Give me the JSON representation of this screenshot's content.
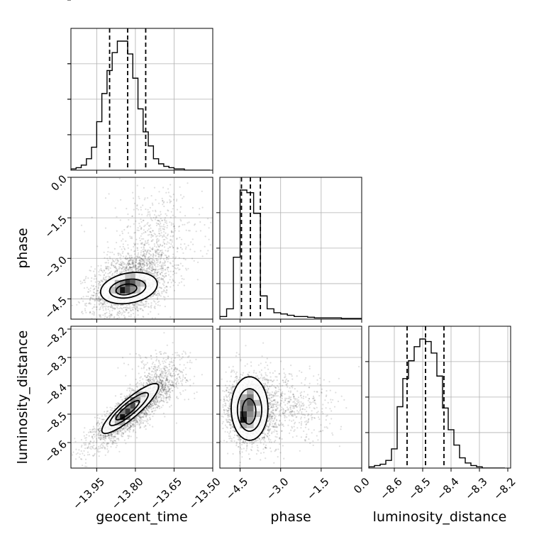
{
  "chart_data": {
    "type": "corner",
    "parameters": [
      "geocent_time",
      "phase",
      "luminosity_distance"
    ],
    "grid": true,
    "ranges": {
      "geocent_time": [
        -14.05,
        -13.5
      ],
      "phase": [
        -5.25,
        0.0
      ],
      "luminosity_distance": [
        -8.69,
        -8.19
      ]
    },
    "tick_labels": {
      "geocent_time": [
        "−13.95",
        "−13.80",
        "−13.65",
        "−13.50"
      ],
      "phase": [
        "−4.5",
        "−3.0",
        "−1.5",
        "0.0"
      ],
      "luminosity_distance": [
        "−8.6",
        "−8.5",
        "−8.4",
        "−8.3",
        "−8.2"
      ]
    },
    "tick_values": {
      "geocent_time": [
        -13.95,
        -13.8,
        -13.65,
        -13.5
      ],
      "phase": [
        -4.5,
        -3.0,
        -1.5,
        0.0
      ],
      "luminosity_distance": [
        -8.6,
        -8.5,
        -8.4,
        -8.3,
        -8.2
      ]
    },
    "quantiles": {
      "geocent_time": [
        -13.9,
        -13.83,
        -13.76
      ],
      "phase": [
        -4.45,
        -4.12,
        -3.75
      ],
      "luminosity_distance": [
        -8.555,
        -8.49,
        -8.425
      ]
    },
    "marginals": {
      "geocent_time": {
        "bin_edges": [
          -14.05,
          -14.03,
          -14.01,
          -13.99,
          -13.97,
          -13.95,
          -13.93,
          -13.91,
          -13.89,
          -13.87,
          -13.85,
          -13.83,
          -13.81,
          -13.79,
          -13.77,
          -13.75,
          -13.73,
          -13.71,
          -13.69,
          -13.67,
          -13.65,
          -13.63,
          -13.61,
          -13.59,
          -13.57,
          -13.55,
          -13.53,
          -13.51
        ],
        "counts": [
          1,
          2,
          4,
          9,
          18,
          38,
          60,
          78,
          92,
          101,
          101,
          91,
          72,
          48,
          30,
          19,
          9,
          5,
          3,
          2,
          1,
          1,
          0,
          0,
          0,
          0,
          0
        ]
      },
      "phase": {
        "bin_edges": [
          -5.25,
          -5.0,
          -4.75,
          -4.5,
          -4.25,
          -4.0,
          -3.75,
          -3.5,
          -3.25,
          -3.0,
          -2.75,
          -2.5,
          -2.25,
          -2.0,
          -1.75,
          -1.5,
          -1.25,
          -1.0,
          -0.75,
          -0.5,
          -0.25,
          0.0
        ],
        "counts": [
          2,
          8,
          48,
          100,
          98,
          82,
          18,
          8,
          5,
          4,
          3,
          2,
          2,
          1.5,
          1,
          1,
          1,
          1,
          0.5,
          0.5,
          0.5
        ]
      },
      "luminosity_distance": {
        "bin_edges": [
          -8.69,
          -8.67,
          -8.65,
          -8.63,
          -8.61,
          -8.59,
          -8.57,
          -8.55,
          -8.53,
          -8.51,
          -8.49,
          -8.47,
          -8.45,
          -8.43,
          -8.41,
          -8.39,
          -8.37,
          -8.35,
          -8.33,
          -8.31,
          -8.29,
          -8.27,
          -8.25,
          -8.23,
          -8.21
        ],
        "counts": [
          1,
          2,
          3,
          6,
          15,
          48,
          70,
          84,
          95,
          101,
          99,
          90,
          72,
          47,
          30,
          18,
          8,
          4,
          2,
          1,
          0,
          0,
          0,
          0
        ]
      }
    },
    "joint": [
      {
        "x": "geocent_time",
        "y": "phase",
        "scatter": {
          "cx": -13.82,
          "cy": -3.95,
          "sx": 0.075,
          "sy": 0.62,
          "rho": 0.35,
          "n": 2200,
          "tail": {
            "cx": -13.72,
            "cy": -2.2,
            "sx": 0.09,
            "sy": 0.9,
            "n": 500
          }
        },
        "contours": [
          {
            "cx": -13.825,
            "cy": -4.1,
            "rx": 0.11,
            "ry": 0.58,
            "rho": 0.25
          },
          {
            "cx": -13.83,
            "cy": -4.12,
            "rx": 0.07,
            "ry": 0.35,
            "rho": 0.25
          },
          {
            "cx": -13.835,
            "cy": -4.15,
            "rx": 0.04,
            "ry": 0.2,
            "rho": 0.25
          }
        ],
        "density": [
          {
            "x": -13.86,
            "y": -4.3,
            "w": 0.02,
            "h": 0.25,
            "v": 1.0
          },
          {
            "x": -13.84,
            "y": -4.3,
            "w": 0.02,
            "h": 0.25,
            "v": 0.75
          },
          {
            "x": -13.84,
            "y": -4.05,
            "w": 0.02,
            "h": 0.25,
            "v": 0.85
          },
          {
            "x": -13.82,
            "y": -4.05,
            "w": 0.02,
            "h": 0.25,
            "v": 0.7
          },
          {
            "x": -13.88,
            "y": -4.3,
            "w": 0.02,
            "h": 0.25,
            "v": 0.45
          },
          {
            "x": -13.8,
            "y": -4.05,
            "w": 0.02,
            "h": 0.25,
            "v": 0.4
          },
          {
            "x": -13.86,
            "y": -4.05,
            "w": 0.02,
            "h": 0.25,
            "v": 0.5
          },
          {
            "x": -13.82,
            "y": -4.3,
            "w": 0.02,
            "h": 0.25,
            "v": 0.5
          },
          {
            "x": -13.9,
            "y": -4.3,
            "w": 0.02,
            "h": 0.25,
            "v": 0.25
          },
          {
            "x": -13.88,
            "y": -4.05,
            "w": 0.02,
            "h": 0.25,
            "v": 0.3
          },
          {
            "x": -13.78,
            "y": -4.05,
            "w": 0.02,
            "h": 0.25,
            "v": 0.25
          },
          {
            "x": -13.8,
            "y": -4.3,
            "w": 0.02,
            "h": 0.25,
            "v": 0.25
          },
          {
            "x": -13.84,
            "y": -3.8,
            "w": 0.02,
            "h": 0.25,
            "v": 0.25
          },
          {
            "x": -13.82,
            "y": -3.8,
            "w": 0.02,
            "h": 0.25,
            "v": 0.3
          }
        ]
      },
      {
        "x": "geocent_time",
        "y": "luminosity_distance",
        "scatter": {
          "cx": -13.81,
          "cy": -8.485,
          "sx": 0.075,
          "sy": 0.06,
          "rho": 0.85,
          "n": 2600,
          "tail": {
            "cx": -13.7,
            "cy": -8.36,
            "sx": 0.06,
            "sy": 0.05,
            "n": 300
          }
        },
        "contours": [
          {
            "cx": -13.82,
            "cy": -8.48,
            "rx": 0.11,
            "ry": 0.088,
            "rho": 0.88
          },
          {
            "cx": -13.825,
            "cy": -8.482,
            "rx": 0.075,
            "ry": 0.058,
            "rho": 0.88
          },
          {
            "cx": -13.83,
            "cy": -8.486,
            "rx": 0.045,
            "ry": 0.034,
            "rho": 0.88
          }
        ],
        "density": [
          {
            "x": -13.86,
            "y": -8.52,
            "w": 0.02,
            "h": 0.02,
            "v": 1.0
          },
          {
            "x": -13.84,
            "y": -8.5,
            "w": 0.02,
            "h": 0.02,
            "v": 0.85
          },
          {
            "x": -13.82,
            "y": -8.48,
            "w": 0.02,
            "h": 0.02,
            "v": 0.75
          },
          {
            "x": -13.84,
            "y": -8.52,
            "w": 0.02,
            "h": 0.02,
            "v": 0.55
          },
          {
            "x": -13.88,
            "y": -8.52,
            "w": 0.02,
            "h": 0.02,
            "v": 0.45
          },
          {
            "x": -13.86,
            "y": -8.5,
            "w": 0.02,
            "h": 0.02,
            "v": 0.55
          },
          {
            "x": -13.82,
            "y": -8.46,
            "w": 0.02,
            "h": 0.02,
            "v": 0.5
          },
          {
            "x": -13.8,
            "y": -8.46,
            "w": 0.02,
            "h": 0.02,
            "v": 0.4
          },
          {
            "x": -13.88,
            "y": -8.54,
            "w": 0.02,
            "h": 0.02,
            "v": 0.3
          },
          {
            "x": -13.8,
            "y": -8.44,
            "w": 0.02,
            "h": 0.02,
            "v": 0.3
          },
          {
            "x": -13.84,
            "y": -8.48,
            "w": 0.02,
            "h": 0.02,
            "v": 0.5
          },
          {
            "x": -13.86,
            "y": -8.54,
            "w": 0.02,
            "h": 0.02,
            "v": 0.35
          },
          {
            "x": -13.78,
            "y": -8.44,
            "w": 0.02,
            "h": 0.02,
            "v": 0.25
          },
          {
            "x": -13.82,
            "y": -8.5,
            "w": 0.02,
            "h": 0.02,
            "v": 0.45
          }
        ]
      },
      {
        "x": "phase",
        "y": "luminosity_distance",
        "scatter": {
          "cx": -4.1,
          "cy": -8.485,
          "sx": 0.45,
          "sy": 0.06,
          "rho": 0.0,
          "n": 2400,
          "tail": {
            "cx": -2.6,
            "cy": -8.48,
            "sx": 0.9,
            "sy": 0.06,
            "n": 500
          }
        },
        "contours": [
          {
            "cx": -4.15,
            "cy": -8.48,
            "rx": 0.68,
            "ry": 0.112,
            "rho": 0.0
          },
          {
            "cx": -4.15,
            "cy": -8.485,
            "rx": 0.45,
            "ry": 0.075,
            "rho": 0.0
          },
          {
            "cx": -4.17,
            "cy": -8.49,
            "rx": 0.25,
            "ry": 0.045,
            "rho": 0.0
          }
        ],
        "density": [
          {
            "x": -4.5,
            "y": -8.53,
            "w": 0.25,
            "h": 0.02,
            "v": 1.0
          },
          {
            "x": -4.5,
            "y": -8.51,
            "w": 0.25,
            "h": 0.02,
            "v": 0.9
          },
          {
            "x": -4.25,
            "y": -8.51,
            "w": 0.25,
            "h": 0.02,
            "v": 0.5
          },
          {
            "x": -4.25,
            "y": -8.49,
            "w": 0.25,
            "h": 0.02,
            "v": 0.6
          },
          {
            "x": -4.25,
            "y": -8.47,
            "w": 0.25,
            "h": 0.02,
            "v": 0.7
          },
          {
            "x": -4.5,
            "y": -8.49,
            "w": 0.25,
            "h": 0.02,
            "v": 0.55
          },
          {
            "x": -4.25,
            "y": -8.45,
            "w": 0.25,
            "h": 0.02,
            "v": 0.55
          },
          {
            "x": -4.5,
            "y": -8.47,
            "w": 0.25,
            "h": 0.02,
            "v": 0.5
          },
          {
            "x": -4.25,
            "y": -8.53,
            "w": 0.25,
            "h": 0.02,
            "v": 0.4
          },
          {
            "x": -4.5,
            "y": -8.45,
            "w": 0.25,
            "h": 0.02,
            "v": 0.35
          },
          {
            "x": -4.25,
            "y": -8.43,
            "w": 0.25,
            "h": 0.02,
            "v": 0.35
          },
          {
            "x": -4.0,
            "y": -8.47,
            "w": 0.25,
            "h": 0.02,
            "v": 0.3
          },
          {
            "x": -4.0,
            "y": -8.51,
            "w": 0.25,
            "h": 0.02,
            "v": 0.25
          },
          {
            "x": -4.5,
            "y": -8.55,
            "w": 0.25,
            "h": 0.02,
            "v": 0.35
          },
          {
            "x": -4.25,
            "y": -8.55,
            "w": 0.25,
            "h": 0.02,
            "v": 0.25
          }
        ]
      }
    ]
  }
}
